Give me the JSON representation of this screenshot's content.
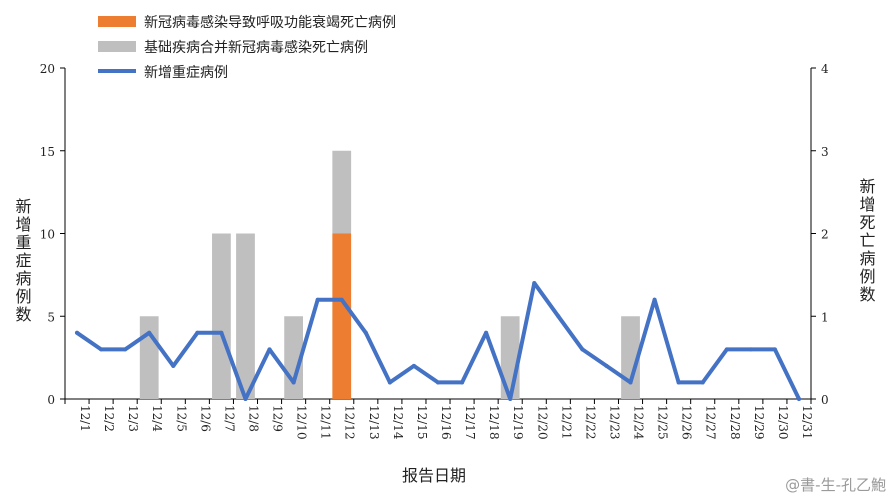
{
  "chart_data": {
    "type": "bar",
    "xlabel": "报告日期",
    "ylabel_left": "新增重症病例数",
    "ylabel_right": "新增死亡病例数",
    "ylim_left": [
      0,
      20
    ],
    "ylim_right": [
      0,
      4
    ],
    "yticks_left": [
      "0",
      "5",
      "10",
      "15",
      "20"
    ],
    "yticks_right": [
      "0",
      "1",
      "2",
      "3",
      "4"
    ],
    "categories": [
      "12/1",
      "12/2",
      "12/3",
      "12/4",
      "12/5",
      "12/6",
      "12/7",
      "12/8",
      "12/9",
      "12/10",
      "12/11",
      "12/12",
      "12/13",
      "12/14",
      "12/15",
      "12/16",
      "12/17",
      "12/18",
      "12/19",
      "12/20",
      "12/21",
      "12/22",
      "12/23",
      "12/24",
      "12/25",
      "12/26",
      "12/27",
      "12/28",
      "12/29",
      "12/30",
      "12/31"
    ],
    "series": [
      {
        "name": "新冠病毒感染导致呼吸功能衰竭死亡病例",
        "type": "bar",
        "axis": "right",
        "color": "#ED7D31",
        "values": [
          0,
          0,
          0,
          0,
          0,
          0,
          0,
          0,
          0,
          0,
          0,
          2,
          0,
          0,
          0,
          0,
          0,
          0,
          0,
          0,
          0,
          0,
          0,
          0,
          0,
          0,
          0,
          0,
          0,
          0,
          0
        ]
      },
      {
        "name": "基础疾病合并新冠病毒感染死亡病例",
        "type": "bar",
        "axis": "right",
        "color": "#BFBFBF",
        "values": [
          0,
          0,
          0,
          1,
          0,
          0,
          2,
          2,
          0,
          1,
          0,
          1,
          0,
          0,
          0,
          0,
          0,
          0,
          1,
          0,
          0,
          0,
          0,
          1,
          0,
          0,
          0,
          0,
          0,
          0,
          0
        ]
      },
      {
        "name": "新增重症病例",
        "type": "line",
        "axis": "left",
        "color": "#4472C4",
        "values": [
          4,
          3,
          3,
          4,
          2,
          4,
          4,
          0,
          3,
          1,
          6,
          6,
          4,
          1,
          2,
          1,
          1,
          4,
          0,
          7,
          5,
          3,
          2,
          1,
          6,
          1,
          1,
          3,
          3,
          3,
          0
        ]
      }
    ],
    "legend_position": "top-left",
    "grid": false
  },
  "watermark": "@書-生-孔乙鮑"
}
